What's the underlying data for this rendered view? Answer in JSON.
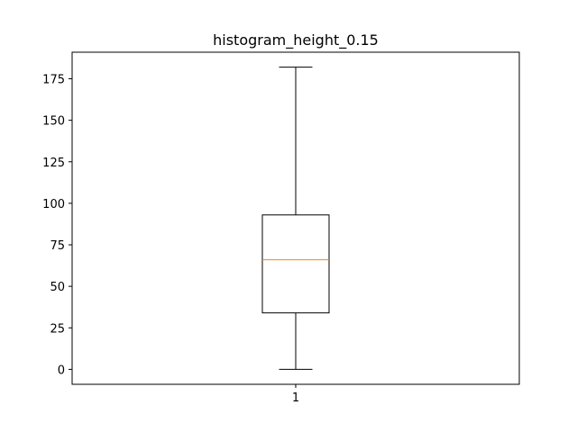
{
  "chart_data": {
    "type": "box",
    "title": "histogram_height_0.15",
    "xlabel": "",
    "ylabel": "",
    "categories": [
      "1"
    ],
    "boxes": [
      {
        "category": "1",
        "whisker_low": 0,
        "q1": 34,
        "median": 66,
        "q3": 93,
        "whisker_high": 182
      }
    ],
    "ylim": [
      -9,
      191
    ],
    "y_ticks": [
      0,
      25,
      50,
      75,
      100,
      125,
      150,
      175
    ],
    "grid": false,
    "colors": {
      "box": "#000000",
      "median": "#ff7f0e",
      "axes": "#000000"
    }
  }
}
